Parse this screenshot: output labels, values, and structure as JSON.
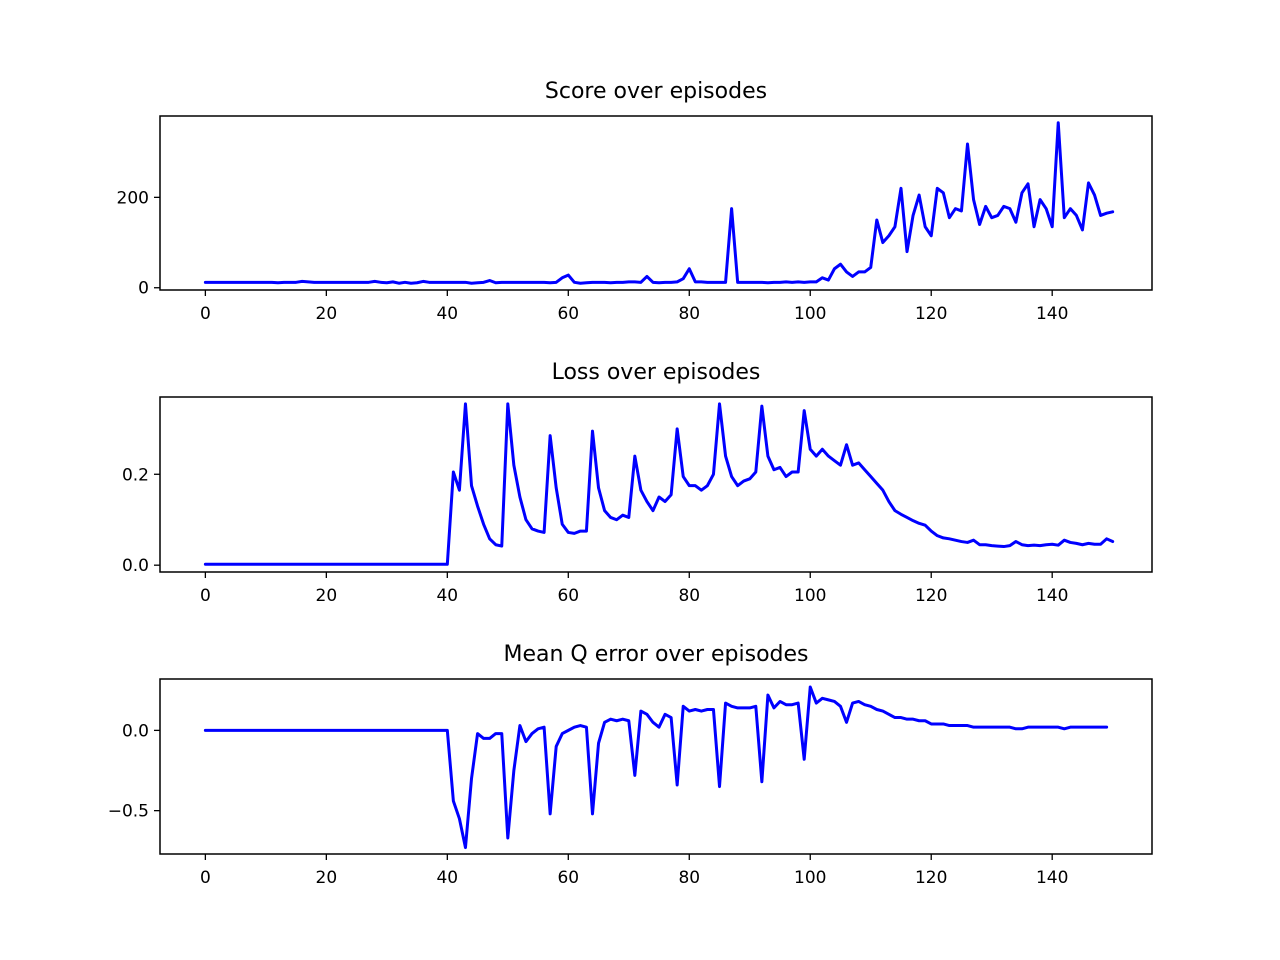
{
  "chart_data": [
    {
      "type": "line",
      "title": "Score over episodes",
      "xlabel": "",
      "ylabel": "",
      "xlim": [
        -7.5,
        156.5
      ],
      "ylim": [
        -5,
        380
      ],
      "xticks": [
        0,
        20,
        40,
        60,
        80,
        100,
        120,
        140
      ],
      "yticks": [
        0,
        200
      ],
      "ytick_labels": [
        "0",
        "200"
      ],
      "grid": false,
      "color": "#0000ff",
      "series": [
        {
          "values": [
            12,
            12,
            12,
            12,
            12,
            12,
            12,
            12,
            12,
            12,
            12,
            12,
            11,
            12,
            12,
            12,
            14,
            13,
            12,
            12,
            12,
            12,
            12,
            12,
            12,
            12,
            12,
            12,
            14,
            12,
            11,
            13,
            10,
            12,
            10,
            11,
            14,
            12,
            12,
            12,
            12,
            12,
            12,
            12,
            10,
            11,
            12,
            16,
            11,
            12,
            12,
            12,
            12,
            12,
            12,
            12,
            12,
            11,
            12,
            22,
            28,
            12,
            10,
            11,
            12,
            12,
            12,
            11,
            12,
            12,
            13,
            13,
            12,
            25,
            12,
            11,
            12,
            12,
            13,
            20,
            42,
            13,
            13,
            12,
            12,
            12,
            12,
            175,
            12,
            12,
            12,
            12,
            12,
            11,
            12,
            12,
            13,
            12,
            13,
            12,
            13,
            13,
            22,
            17,
            42,
            52,
            35,
            25,
            35,
            35,
            45,
            150,
            100,
            115,
            135,
            220,
            80,
            160,
            205,
            135,
            115,
            220,
            210,
            155,
            175,
            170,
            318,
            195,
            140,
            180,
            155,
            160,
            180,
            175,
            145,
            210,
            230,
            135,
            195,
            175,
            135,
            365,
            155,
            175,
            160,
            128,
            232,
            205,
            160,
            165,
            168
          ]
        }
      ]
    },
    {
      "type": "line",
      "title": "Loss over episodes",
      "xlabel": "",
      "ylabel": "",
      "xlim": [
        -7.5,
        156.5
      ],
      "ylim": [
        -0.015,
        0.37
      ],
      "xticks": [
        0,
        20,
        40,
        60,
        80,
        100,
        120,
        140
      ],
      "yticks": [
        0.0,
        0.2
      ],
      "ytick_labels": [
        "0.0",
        "0.2"
      ],
      "grid": false,
      "color": "#0000ff",
      "series": [
        {
          "values": [
            0.002,
            0.002,
            0.002,
            0.002,
            0.002,
            0.002,
            0.002,
            0.002,
            0.002,
            0.002,
            0.002,
            0.002,
            0.002,
            0.002,
            0.002,
            0.002,
            0.002,
            0.002,
            0.002,
            0.002,
            0.002,
            0.002,
            0.002,
            0.002,
            0.002,
            0.002,
            0.002,
            0.002,
            0.002,
            0.002,
            0.002,
            0.002,
            0.002,
            0.002,
            0.002,
            0.002,
            0.002,
            0.002,
            0.002,
            0.002,
            0.002,
            0.205,
            0.165,
            0.355,
            0.175,
            0.13,
            0.09,
            0.058,
            0.045,
            0.042,
            0.355,
            0.22,
            0.15,
            0.1,
            0.08,
            0.075,
            0.072,
            0.285,
            0.17,
            0.09,
            0.072,
            0.07,
            0.075,
            0.075,
            0.295,
            0.17,
            0.12,
            0.105,
            0.1,
            0.11,
            0.105,
            0.24,
            0.165,
            0.14,
            0.12,
            0.15,
            0.14,
            0.155,
            0.3,
            0.195,
            0.175,
            0.175,
            0.165,
            0.175,
            0.2,
            0.355,
            0.24,
            0.195,
            0.175,
            0.185,
            0.19,
            0.205,
            0.35,
            0.24,
            0.21,
            0.215,
            0.195,
            0.205,
            0.205,
            0.34,
            0.255,
            0.24,
            0.255,
            0.24,
            0.23,
            0.22,
            0.265,
            0.22,
            0.225,
            0.21,
            0.195,
            0.18,
            0.165,
            0.14,
            0.12,
            0.112,
            0.105,
            0.098,
            0.092,
            0.088,
            0.075,
            0.065,
            0.06,
            0.058,
            0.055,
            0.052,
            0.05,
            0.055,
            0.045,
            0.045,
            0.043,
            0.042,
            0.041,
            0.043,
            0.052,
            0.045,
            0.043,
            0.044,
            0.043,
            0.045,
            0.046,
            0.044,
            0.055,
            0.05,
            0.048,
            0.045,
            0.048,
            0.046,
            0.046,
            0.058,
            0.052
          ]
        }
      ]
    },
    {
      "type": "line",
      "title": "Mean Q error over episodes",
      "xlabel": "",
      "ylabel": "",
      "xlim": [
        -7.5,
        156.5
      ],
      "ylim": [
        -0.77,
        0.32
      ],
      "xticks": [
        0,
        20,
        40,
        60,
        80,
        100,
        120,
        140
      ],
      "yticks": [
        0.0,
        -0.5
      ],
      "ytick_labels": [
        "0.0",
        "−0.5"
      ],
      "grid": false,
      "color": "#0000ff",
      "series": [
        {
          "values": [
            0.0,
            0.0,
            0.0,
            0.0,
            0.0,
            0.0,
            0.0,
            0.0,
            0.0,
            0.0,
            0.0,
            0.0,
            0.0,
            0.0,
            0.0,
            0.0,
            0.0,
            0.0,
            0.0,
            0.0,
            0.0,
            0.0,
            0.0,
            0.0,
            0.0,
            0.0,
            0.0,
            0.0,
            0.0,
            0.0,
            0.0,
            0.0,
            0.0,
            0.0,
            0.0,
            0.0,
            0.0,
            0.0,
            0.0,
            0.0,
            0.0,
            -0.44,
            -0.55,
            -0.73,
            -0.3,
            -0.02,
            -0.05,
            -0.05,
            -0.02,
            -0.02,
            -0.67,
            -0.25,
            0.03,
            -0.07,
            -0.02,
            0.01,
            0.02,
            -0.52,
            -0.1,
            -0.02,
            0.0,
            0.02,
            0.03,
            0.02,
            -0.52,
            -0.08,
            0.05,
            0.07,
            0.06,
            0.07,
            0.06,
            -0.28,
            0.12,
            0.1,
            0.05,
            0.02,
            0.1,
            0.08,
            -0.34,
            0.15,
            0.12,
            0.13,
            0.12,
            0.13,
            0.13,
            -0.35,
            0.17,
            0.15,
            0.14,
            0.14,
            0.14,
            0.15,
            -0.32,
            0.22,
            0.14,
            0.18,
            0.16,
            0.16,
            0.17,
            -0.18,
            0.27,
            0.17,
            0.2,
            0.19,
            0.18,
            0.15,
            0.05,
            0.17,
            0.18,
            0.16,
            0.15,
            0.13,
            0.12,
            0.1,
            0.08,
            0.08,
            0.07,
            0.07,
            0.06,
            0.06,
            0.04,
            0.04,
            0.04,
            0.03,
            0.03,
            0.03,
            0.03,
            0.02,
            0.02,
            0.02,
            0.02,
            0.02,
            0.02,
            0.02,
            0.01,
            0.01,
            0.02,
            0.02,
            0.02,
            0.02,
            0.02,
            0.02,
            0.01,
            0.02,
            0.02,
            0.02,
            0.02,
            0.02,
            0.02,
            0.02
          ]
        }
      ]
    }
  ]
}
